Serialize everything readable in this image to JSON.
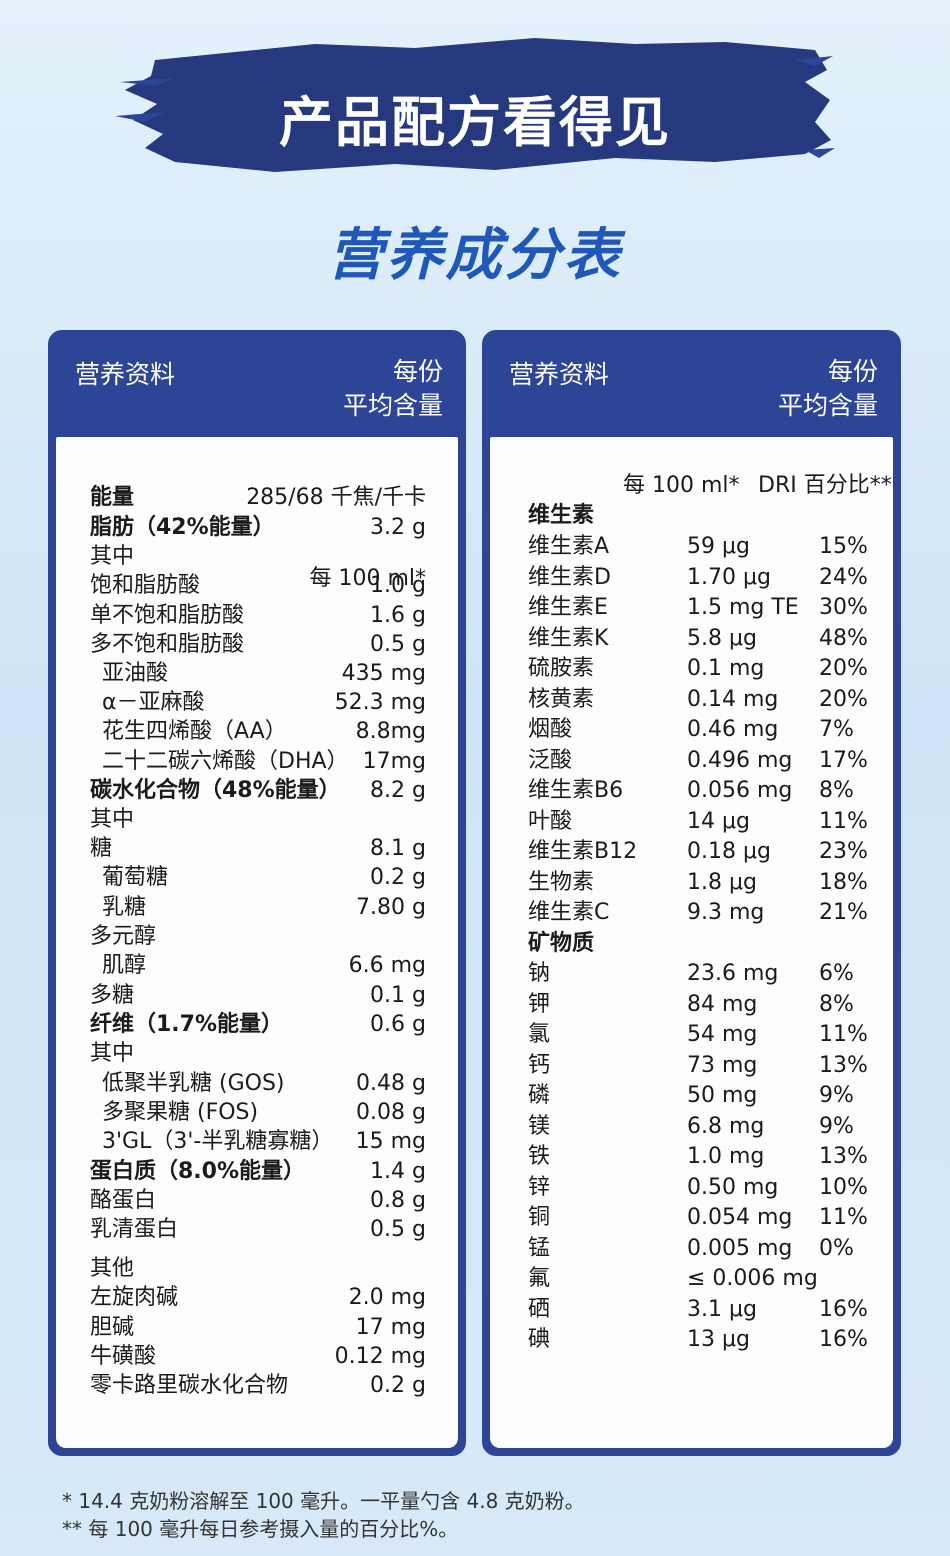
{
  "banner": {
    "title": "产品配方看得见"
  },
  "subtitle": "营养成分表",
  "colors": {
    "navy": "#2c4596",
    "title_blue": "#1f58b8"
  },
  "left_panel": {
    "header_left": "营养资料",
    "header_right_1": "每份",
    "header_right_2": "平均含量",
    "unit_header": "每 100 ml*",
    "rows": [
      {
        "name": "能量",
        "value": "285/68 千焦/千卡"
      },
      {
        "name": "脂肪（42%能量）",
        "value": "3.2 g"
      },
      {
        "name": "其中",
        "value": ""
      },
      {
        "name": "饱和脂肪酸",
        "value": "1.0 g"
      },
      {
        "name": "单不饱和脂肪酸",
        "value": "1.6 g"
      },
      {
        "name": "多不饱和脂肪酸",
        "value": "0.5 g"
      },
      {
        "name": "亚油酸",
        "value": "435 mg"
      },
      {
        "name": "α－亚麻酸",
        "value": "52.3 mg"
      },
      {
        "name": "花生四烯酸（AA）",
        "value": "8.8mg"
      },
      {
        "name": "二十二碳六烯酸（DHA）",
        "value": "17mg"
      },
      {
        "name": "碳水化合物（48%能量）",
        "value": "8.2 g"
      },
      {
        "name": "其中",
        "value": ""
      },
      {
        "name": "糖",
        "value": "8.1 g"
      },
      {
        "name": "葡萄糖",
        "value": "0.2 g"
      },
      {
        "name": "乳糖",
        "value": "7.80 g"
      },
      {
        "name": "多元醇",
        "value": ""
      },
      {
        "name": "肌醇",
        "value": "6.6 mg"
      },
      {
        "name": "多糖",
        "value": "0.1 g"
      },
      {
        "name": "纤维（1.7%能量）",
        "value": "0.6 g"
      },
      {
        "name": "其中",
        "value": ""
      },
      {
        "name": "低聚半乳糖 (GOS)",
        "value": "0.48 g"
      },
      {
        "name": "多聚果糖 (FOS)",
        "value": "0.08 g"
      },
      {
        "name": "3'GL（3'-半乳糖寡糖）",
        "value": "15 mg"
      },
      {
        "name": "蛋白质（8.0%能量）",
        "value": "1.4 g"
      },
      {
        "name": "酪蛋白",
        "value": "0.8 g"
      },
      {
        "name": "乳清蛋白",
        "value": "0.5 g"
      },
      {
        "name": "其他",
        "value": ""
      },
      {
        "name": "左旋肉碱",
        "value": "2.0 mg"
      },
      {
        "name": "胆碱",
        "value": "17 mg"
      },
      {
        "name": "牛磺酸",
        "value": "0.12 mg"
      },
      {
        "name": "零卡路里碳水化合物",
        "value": "0.2 g"
      }
    ]
  },
  "right_panel": {
    "header_left": "营养资料",
    "header_right_1": "每份",
    "header_right_2": "平均含量",
    "unit_header": "每 100 ml*",
    "dri_header": "DRI 百分比**",
    "vitamins_title": "维生素",
    "vitamins": [
      {
        "name": "维生素A",
        "amount": "59 μg",
        "pct": "15%"
      },
      {
        "name": "维生素D",
        "amount": "1.70 μg",
        "pct": "24%"
      },
      {
        "name": "维生素E",
        "amount": "1.5 mg TE",
        "pct": "30%"
      },
      {
        "name": "维生素K",
        "amount": "5.8 μg",
        "pct": "48%"
      },
      {
        "name": "硫胺素",
        "amount": "0.1 mg",
        "pct": "20%"
      },
      {
        "name": "核黄素",
        "amount": "0.14 mg",
        "pct": "20%"
      },
      {
        "name": "烟酸",
        "amount": "0.46 mg",
        "pct": "7%"
      },
      {
        "name": "泛酸",
        "amount": "0.496 mg",
        "pct": "17%"
      },
      {
        "name": "维生素B6",
        "amount": "0.056 mg",
        "pct": "8%"
      },
      {
        "name": "叶酸",
        "amount": "14 μg",
        "pct": "11%"
      },
      {
        "name": "维生素B12",
        "amount": "0.18 μg",
        "pct": "23%"
      },
      {
        "name": "生物素",
        "amount": "1.8 μg",
        "pct": "18%"
      },
      {
        "name": "维生素C",
        "amount": "9.3 mg",
        "pct": "21%"
      }
    ],
    "minerals_title": "矿物质",
    "minerals": [
      {
        "name": "钠",
        "amount": "23.6 mg",
        "pct": "6%"
      },
      {
        "name": "钾",
        "amount": "84 mg",
        "pct": "8%"
      },
      {
        "name": "氯",
        "amount": "54 mg",
        "pct": "11%"
      },
      {
        "name": "钙",
        "amount": "73 mg",
        "pct": "13%"
      },
      {
        "name": "磷",
        "amount": "50 mg",
        "pct": "9%"
      },
      {
        "name": "镁",
        "amount": "6.8 mg",
        "pct": "9%"
      },
      {
        "name": "铁",
        "amount": "1.0 mg",
        "pct": "13%"
      },
      {
        "name": "锌",
        "amount": "0.50 mg",
        "pct": "10%"
      },
      {
        "name": "铜",
        "amount": "0.054 mg",
        "pct": "11%"
      },
      {
        "name": "锰",
        "amount": "0.005 mg",
        "pct": "0%"
      },
      {
        "name": "氟",
        "amount": "≤ 0.006 mg",
        "pct": ""
      },
      {
        "name": "硒",
        "amount": "3.1 μg",
        "pct": "16%"
      },
      {
        "name": "碘",
        "amount": "13 μg",
        "pct": "16%"
      }
    ]
  },
  "footnotes": [
    "* 14.4 克奶粉溶解至 100 毫升。一平量勺含 4.8 克奶粉。",
    "** 每 100 毫升每日参考摄入量的百分比%。"
  ]
}
